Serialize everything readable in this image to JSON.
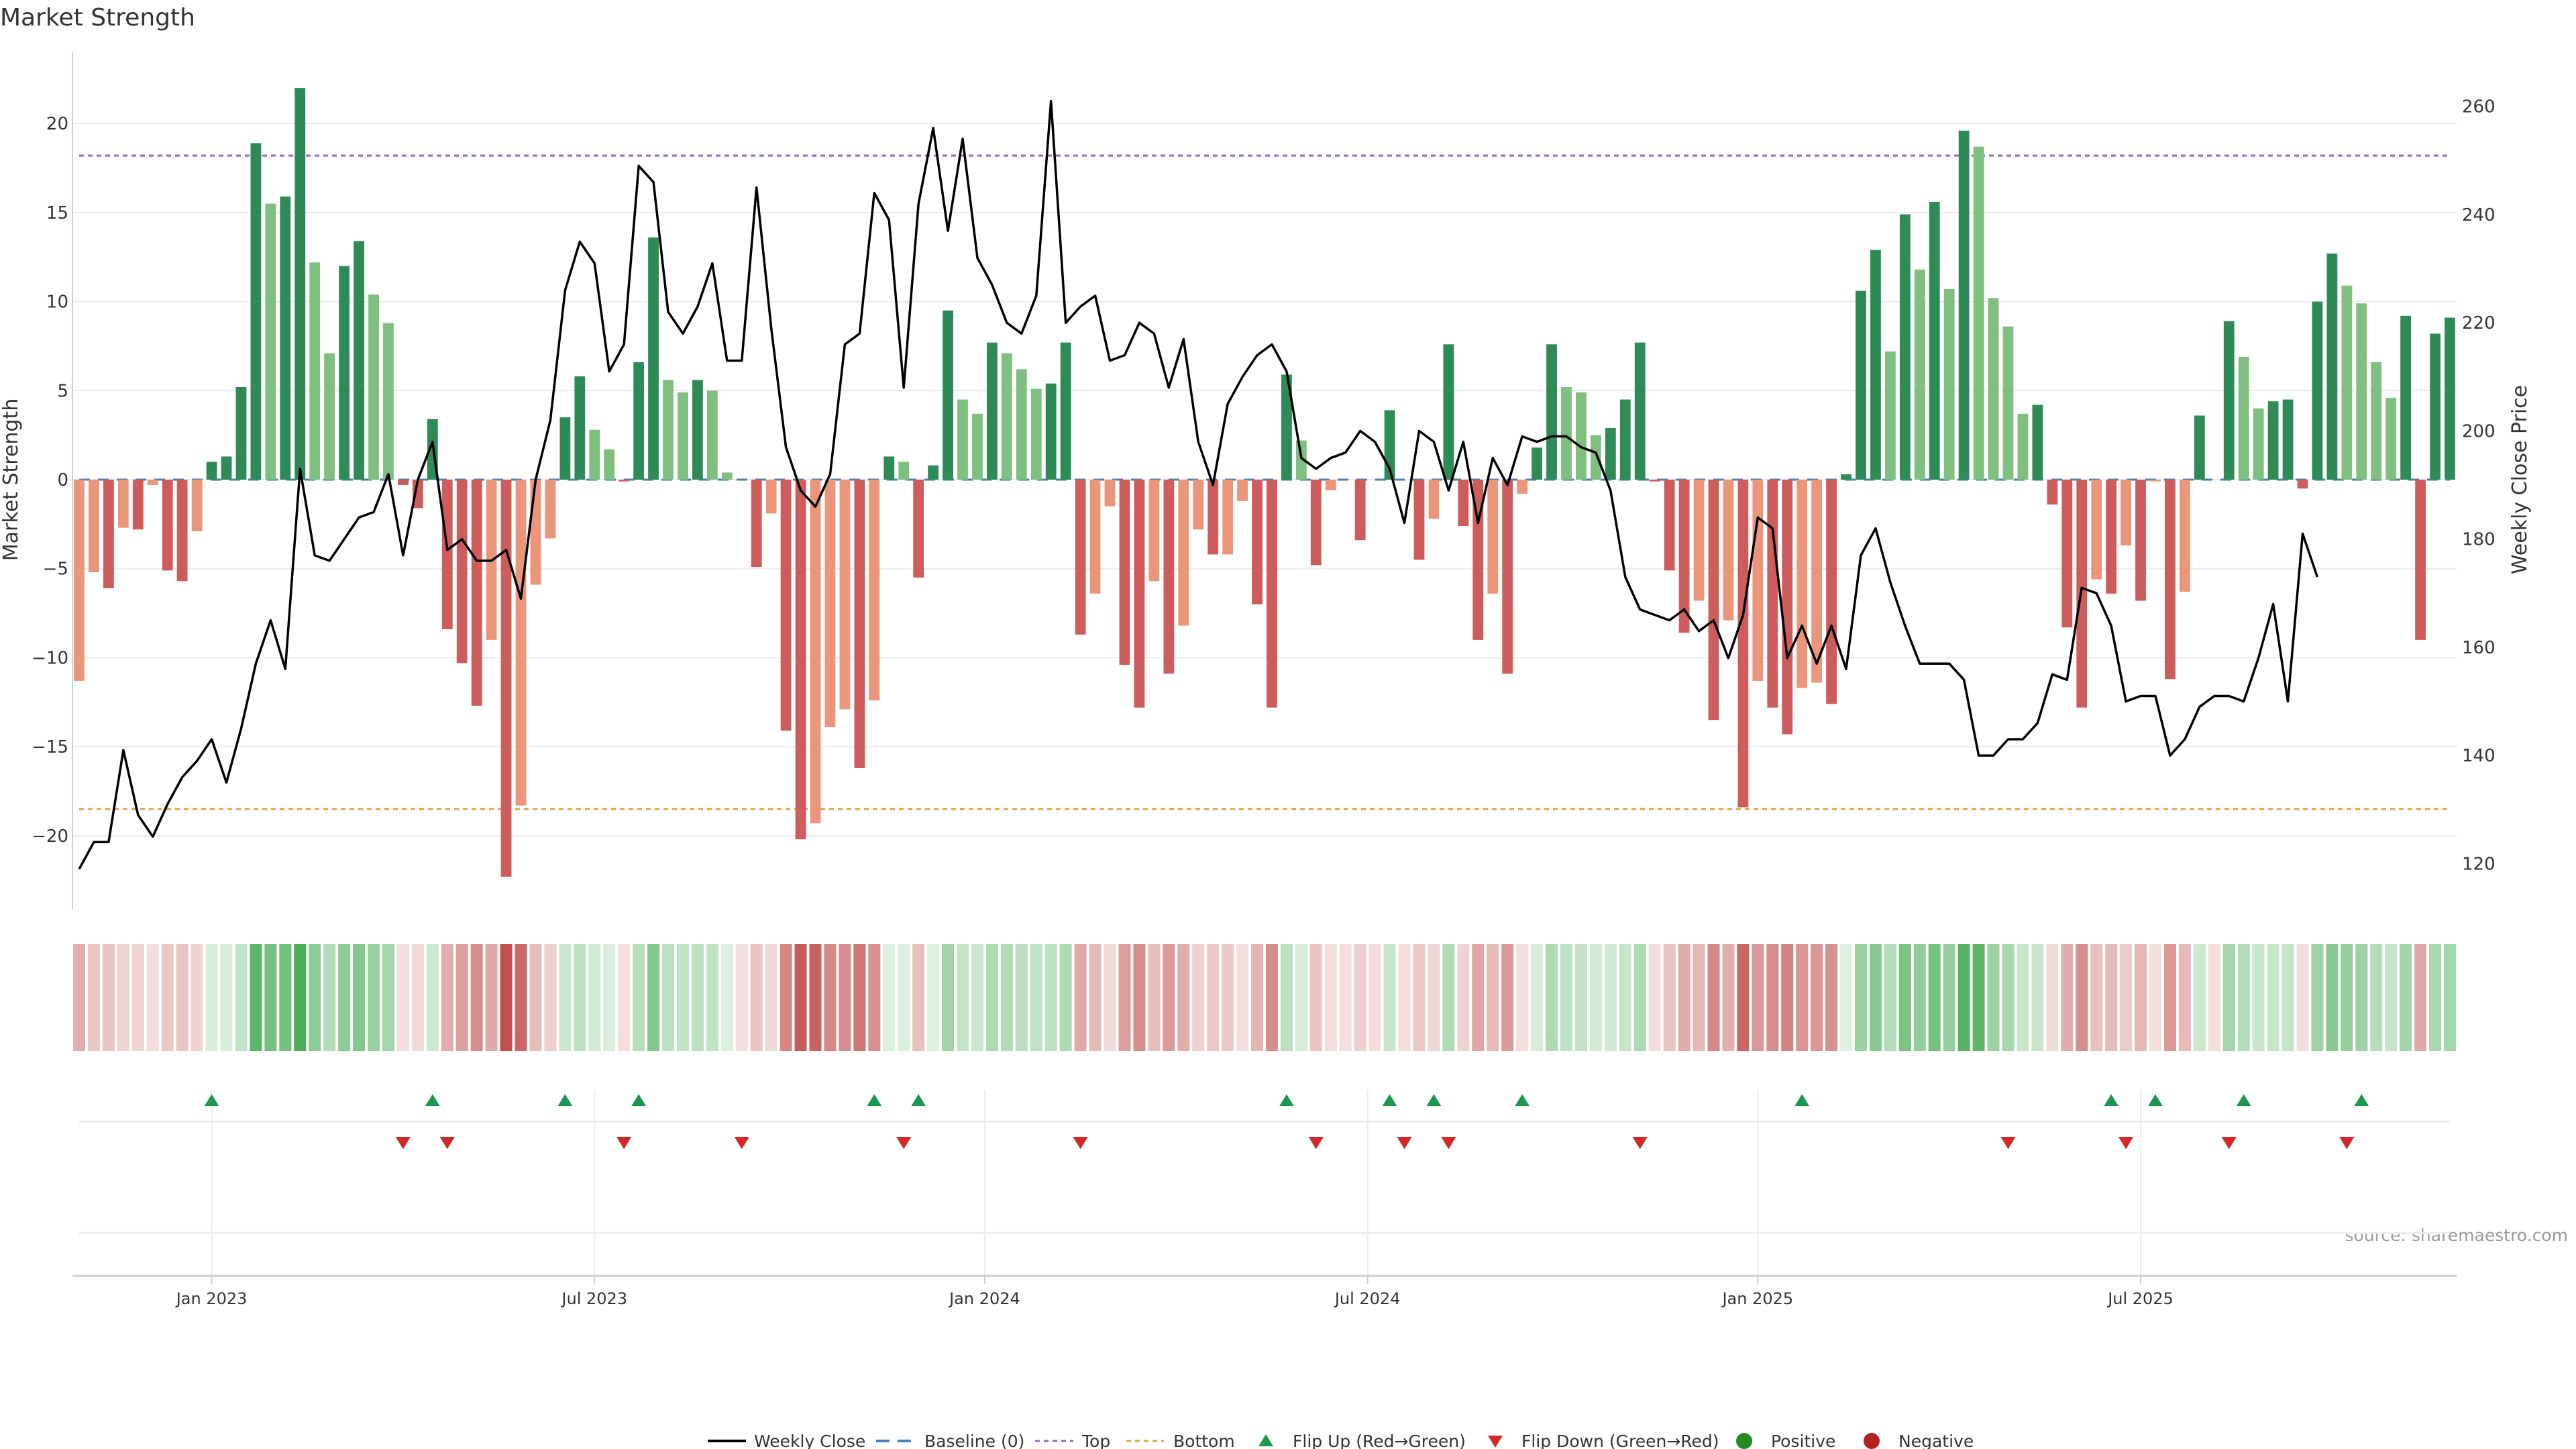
{
  "chart_data": {
    "type": "bar+line",
    "title": "Market Strength",
    "ylabel_left": "Market Strength",
    "ylabel_right": "Weekly Close Price",
    "source": "source: sharemaestro.com",
    "ylim_left": [
      -24,
      24
    ],
    "ylim_right": [
      112,
      270
    ],
    "yticks_left": [
      "20",
      "15",
      "10",
      "5",
      "0",
      "−5",
      "−10",
      "−15",
      "−20"
    ],
    "yticks_left_values": [
      20,
      15,
      10,
      5,
      0,
      -5,
      -10,
      -15,
      -20
    ],
    "yticks_right": [
      "260",
      "240",
      "220",
      "200",
      "180",
      "160",
      "140",
      "120"
    ],
    "yticks_right_values": [
      260,
      240,
      220,
      200,
      180,
      160,
      140,
      120
    ],
    "xticks": [
      "Jan 2023",
      "Jul 2023",
      "Jan 2024",
      "Jul 2024",
      "Jan 2025",
      "Jul 2025"
    ],
    "xticks_week_index": [
      9,
      35,
      61.5,
      87.5,
      114,
      140
    ],
    "top_level": 18.2,
    "bottom_level": -18.5,
    "strength": [
      -11.3,
      -5.2,
      -6.1,
      -2.7,
      -2.8,
      -0.3,
      -5.1,
      -5.7,
      -2.9,
      1.0,
      1.3,
      5.2,
      18.9,
      15.5,
      15.9,
      22.0,
      12.2,
      7.1,
      12.0,
      13.4,
      10.4,
      8.8,
      -0.3,
      -1.6,
      3.4,
      -8.4,
      -10.3,
      -12.7,
      -9.0,
      -22.3,
      -18.3,
      -5.9,
      -3.3,
      3.5,
      5.8,
      2.8,
      1.7,
      -0.1,
      6.6,
      13.6,
      5.6,
      4.9,
      5.6,
      5.0,
      0.4,
      0,
      -4.9,
      -1.9,
      -14.1,
      -20.2,
      -19.3,
      -13.9,
      -12.9,
      -16.2,
      -12.4,
      1.3,
      1.0,
      -5.5,
      0.8,
      9.5,
      4.5,
      3.7,
      7.7,
      7.1,
      6.2,
      5.1,
      5.4,
      7.7,
      -8.7,
      -6.4,
      -1.5,
      -10.4,
      -12.8,
      -5.7,
      -10.9,
      -8.2,
      -2.8,
      -4.2,
      -4.2,
      -1.2,
      -7.0,
      -12.8,
      5.9,
      2.2,
      -4.8,
      -0.6,
      0,
      -3.4,
      0,
      3.9,
      0,
      -4.5,
      -2.2,
      7.6,
      -2.6,
      -9.0,
      -6.4,
      -10.9,
      -0.8,
      1.8,
      7.6,
      5.2,
      4.9,
      2.5,
      2.9,
      4.5,
      7.7,
      -0.1,
      -5.1,
      -8.6,
      -6.8,
      -13.5,
      -7.9,
      -18.4,
      -11.3,
      -12.8,
      -14.3,
      -11.7,
      -11.4,
      -12.6,
      0.3,
      10.6,
      12.9,
      7.2,
      14.9,
      11.8,
      15.6,
      10.7,
      19.6,
      18.7,
      10.2,
      8.6,
      3.7,
      4.2,
      -1.4,
      -8.3,
      -12.8,
      -5.6,
      -6.4,
      -3.7,
      -6.8,
      -0.1,
      -11.2,
      -6.3,
      3.6,
      0,
      8.9,
      6.9,
      4.0,
      4.4,
      4.5,
      -0.5,
      10.0,
      12.7,
      10.9,
      9.9,
      6.6,
      4.6,
      9.2,
      -9.0,
      8.2,
      9.1
    ],
    "weekly_close": [
      119,
      124,
      124,
      141,
      129,
      125,
      131,
      136,
      139,
      143,
      135,
      145,
      157,
      165,
      156,
      193,
      177,
      176,
      180,
      184,
      185,
      192,
      177,
      191,
      198,
      178,
      180,
      176,
      176,
      178,
      169,
      191,
      202,
      226,
      235,
      231,
      211,
      216,
      249,
      246,
      222,
      218,
      223,
      231,
      213,
      213,
      245,
      219,
      197,
      189,
      186,
      192,
      216,
      218,
      244,
      239,
      208,
      242,
      256,
      237,
      254,
      232,
      227,
      220,
      218,
      225,
      261,
      220,
      223,
      225,
      213,
      214,
      220,
      218,
      208,
      217,
      198,
      190,
      205,
      210,
      214,
      216,
      211,
      195,
      193,
      195,
      196,
      200,
      198,
      193,
      183,
      200,
      198,
      189,
      198,
      183,
      195,
      190,
      199,
      198,
      199,
      199,
      197,
      196,
      189,
      173,
      167,
      166,
      165,
      167,
      163,
      165,
      158,
      166,
      184,
      182,
      158,
      164,
      157,
      164,
      156,
      177,
      182,
      172,
      164,
      157,
      157,
      157,
      154,
      140,
      140,
      143,
      143,
      146,
      155,
      154,
      171,
      170,
      164,
      150,
      151,
      151,
      140,
      143,
      149,
      151,
      151,
      150,
      158,
      168,
      150,
      181,
      173
    ],
    "heat_intensity": [
      0.36,
      0.21,
      0.23,
      0.11,
      0.11,
      0.05,
      0.2,
      0.22,
      0.12,
      0.08,
      0.08,
      0.24,
      0.9,
      0.74,
      0.75,
      1.0,
      0.58,
      0.34,
      0.57,
      0.64,
      0.5,
      0.42,
      0.05,
      0.07,
      0.16,
      0.38,
      0.47,
      0.58,
      0.41,
      1.0,
      0.83,
      0.27,
      0.15,
      0.17,
      0.27,
      0.13,
      0.08,
      0.05,
      0.31,
      0.65,
      0.27,
      0.23,
      0.27,
      0.24,
      0.05,
      0.05,
      0.22,
      0.09,
      0.64,
      0.92,
      0.88,
      0.63,
      0.59,
      0.74,
      0.56,
      0.06,
      0.05,
      0.25,
      0.05,
      0.45,
      0.21,
      0.18,
      0.37,
      0.34,
      0.29,
      0.24,
      0.26,
      0.37,
      0.4,
      0.29,
      0.07,
      0.47,
      0.58,
      0.26,
      0.5,
      0.37,
      0.13,
      0.19,
      0.19,
      0.05,
      0.32,
      0.58,
      0.28,
      0.1,
      0.22,
      0.05,
      0.05,
      0.15,
      0.05,
      0.19,
      0.05,
      0.2,
      0.1,
      0.36,
      0.12,
      0.41,
      0.29,
      0.5,
      0.05,
      0.09,
      0.36,
      0.25,
      0.23,
      0.12,
      0.14,
      0.21,
      0.37,
      0.05,
      0.23,
      0.39,
      0.31,
      0.61,
      0.36,
      0.84,
      0.51,
      0.58,
      0.65,
      0.53,
      0.52,
      0.57,
      0.05,
      0.5,
      0.61,
      0.34,
      0.71,
      0.56,
      0.74,
      0.51,
      0.93,
      0.89,
      0.48,
      0.41,
      0.18,
      0.2,
      0.06,
      0.38,
      0.58,
      0.25,
      0.29,
      0.17,
      0.31,
      0.05,
      0.51,
      0.29,
      0.17,
      0.05,
      0.42,
      0.33,
      0.19,
      0.21,
      0.21,
      0.05,
      0.47,
      0.6,
      0.52,
      0.47,
      0.31,
      0.22,
      0.44,
      0.41,
      0.39,
      0.43
    ],
    "flip_up_weeks": [
      9,
      24,
      33,
      38,
      54,
      57,
      82,
      89,
      92,
      98,
      117,
      138,
      141,
      147,
      155
    ],
    "flip_down_weeks": [
      22,
      25,
      37,
      45,
      56,
      68,
      84,
      90,
      93,
      106,
      131,
      139,
      146,
      154
    ],
    "legend": [
      "Weekly Close",
      "Baseline (0)",
      "Top",
      "Bottom",
      "Flip Up (Red→Green)",
      "Flip Down (Green→Red)",
      "Positive",
      "Negative"
    ],
    "colors": {
      "pos_strong": "#2e8b57",
      "pos_light": "#7fbf7f",
      "neg_strong": "#cd5c5c",
      "neg_light": "#e9967a",
      "line": "#000000",
      "top": "#9467bd",
      "bottom": "#e0a040",
      "baseline": "#4a7fb5",
      "flip_up": "#1a9850",
      "flip_down": "#d62728",
      "positive_dot": "#228b22",
      "negative_dot": "#b22222",
      "heat_pos": "#4daf5a",
      "heat_neg": "#c0504d",
      "grid": "#ececec",
      "axis": "#cfcfcf",
      "text": "#333333"
    }
  }
}
